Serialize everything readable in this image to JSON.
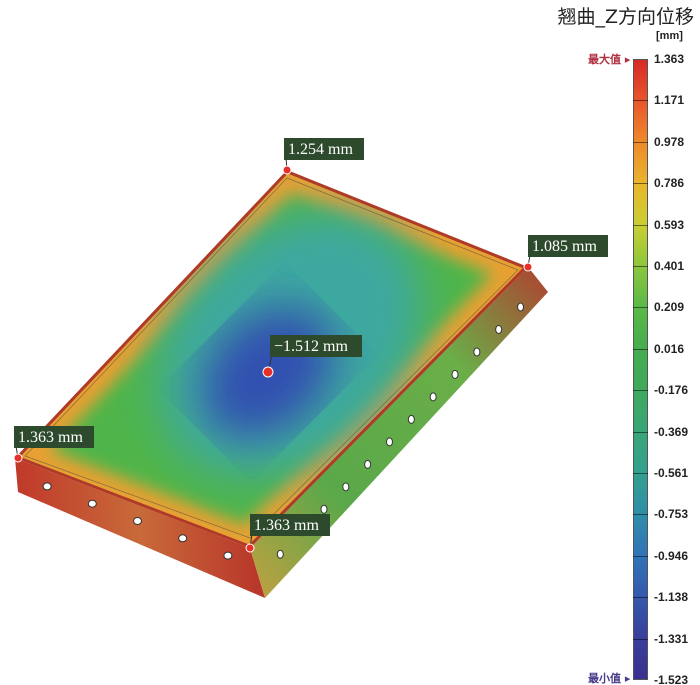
{
  "title": "翘曲_Z方向位移",
  "legend": {
    "unit": "[mm]",
    "max_label": "最大值",
    "min_label": "最小值",
    "ticks": [
      "1.363",
      "1.171",
      "0.978",
      "0.786",
      "0.593",
      "0.401",
      "0.209",
      "0.016",
      "-0.176",
      "-0.369",
      "-0.561",
      "-0.753",
      "-0.946",
      "-1.138",
      "-1.331",
      "-1.523"
    ],
    "colors": [
      "#d62a25",
      "#e8562b",
      "#ee8a2c",
      "#e9b52e",
      "#c9cf33",
      "#8cc63d",
      "#5ab947",
      "#45ad4e",
      "#3fa95e",
      "#39a676",
      "#33a18e",
      "#2f8ea8",
      "#3173b8",
      "#3559ad",
      "#393f9c",
      "#3a3090"
    ],
    "max_color": "#b03040",
    "min_color": "#4a3a8a"
  },
  "annotations": [
    {
      "text": "1.254 mm"
    },
    {
      "text": "1.085 mm"
    },
    {
      "text": "−1.512 mm"
    },
    {
      "text": "1.363 mm"
    },
    {
      "text": "1.363 mm"
    }
  ]
}
